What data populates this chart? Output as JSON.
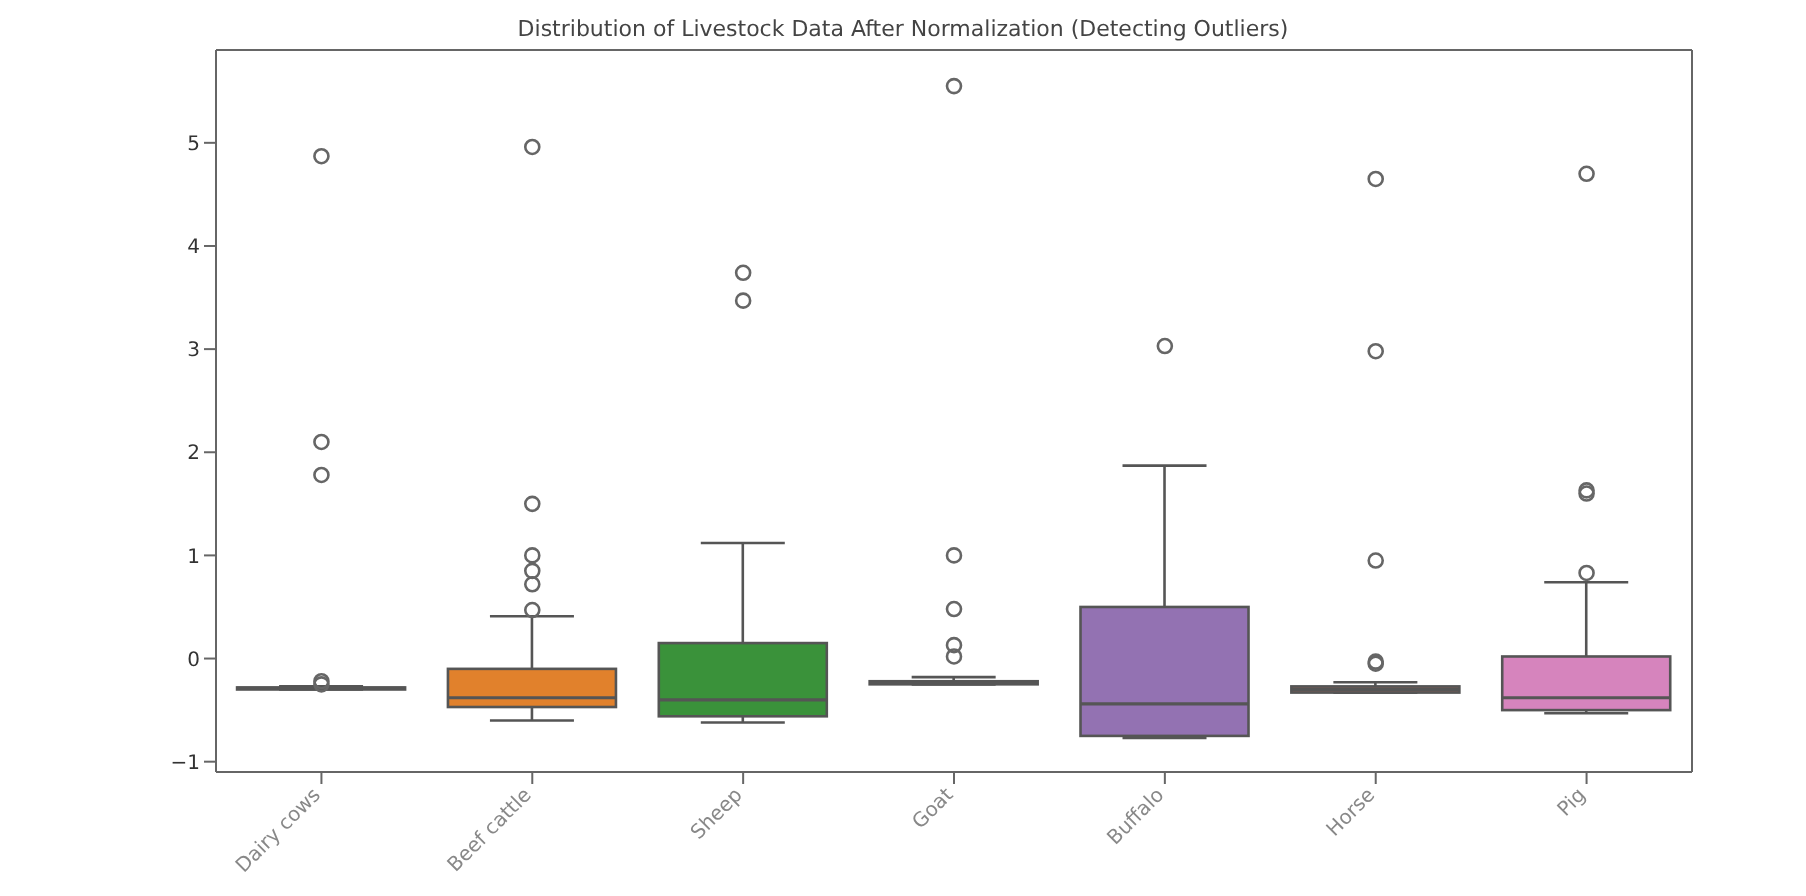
{
  "chart_data": {
    "type": "box",
    "title": "Distribution of Livestock Data After Normalization (Detecting Outliers)",
    "categories": [
      "Dairy cows",
      "Beef cattle",
      "Sheep",
      "Goat",
      "Buffalo",
      "Horse",
      "Pig"
    ],
    "colors": [
      "#3274a1",
      "#e1812c",
      "#3a923a",
      "#c03d3e",
      "#9372b2",
      "#845b53",
      "#d684bd"
    ],
    "boxes": [
      {
        "low": -0.3,
        "q1": -0.3,
        "median": -0.29,
        "q3": -0.28,
        "high": -0.27,
        "outliers": [
          4.87,
          2.1,
          1.78,
          -0.22,
          -0.25
        ]
      },
      {
        "low": -0.6,
        "q1": -0.47,
        "median": -0.38,
        "q3": -0.1,
        "high": 0.41,
        "outliers": [
          0.47,
          0.72,
          0.85,
          1.0,
          1.5,
          4.96
        ]
      },
      {
        "low": -0.62,
        "q1": -0.56,
        "median": -0.4,
        "q3": 0.15,
        "high": 1.12,
        "outliers": [
          3.47,
          3.74
        ]
      },
      {
        "low": -0.25,
        "q1": -0.25,
        "median": -0.24,
        "q3": -0.22,
        "high": -0.18,
        "outliers": [
          0.02,
          0.13,
          0.48,
          1.0,
          5.55
        ]
      },
      {
        "low": -0.77,
        "q1": -0.75,
        "median": -0.44,
        "q3": 0.5,
        "high": 1.87,
        "outliers": [
          3.03
        ]
      },
      {
        "low": -0.33,
        "q1": -0.33,
        "median": -0.3,
        "q3": -0.27,
        "high": -0.23,
        "outliers": [
          -0.05,
          -0.03,
          0.95,
          2.98,
          4.65
        ]
      },
      {
        "low": -0.53,
        "q1": -0.5,
        "median": -0.38,
        "q3": 0.02,
        "high": 0.74,
        "outliers": [
          0.83,
          1.6,
          1.63,
          4.7
        ]
      }
    ],
    "ylim": [
      -1.1,
      5.9
    ],
    "yticks": [
      -1,
      0,
      1,
      2,
      3,
      4,
      5
    ],
    "grid": false,
    "legend": false
  }
}
